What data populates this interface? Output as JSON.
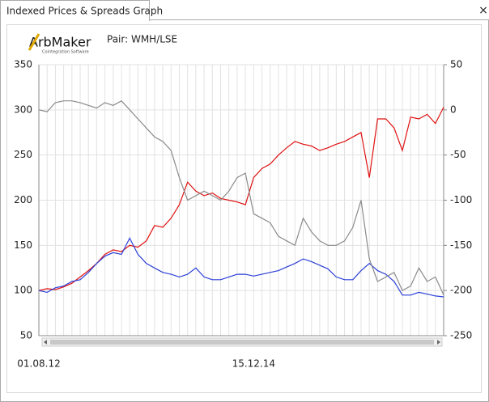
{
  "window": {
    "tab": "Indexed Prices & Spreads Graph",
    "logo": "ArbMaker",
    "tagline": "Cointegration Software",
    "pair": "Pair: WMH/LSE"
  },
  "chart_data": {
    "type": "line",
    "categories": [
      "01.08.12",
      null,
      null,
      null,
      null,
      null,
      null,
      null,
      null,
      null,
      null,
      null,
      null,
      null,
      null,
      null,
      null,
      null,
      null,
      null,
      null,
      null,
      null,
      null,
      null,
      null,
      "15.12.14",
      null,
      null,
      null,
      null,
      null,
      null,
      null,
      null,
      null,
      null,
      null,
      null,
      null,
      null,
      null,
      null,
      null,
      null,
      null,
      null,
      null,
      null,
      null
    ],
    "series": [
      {
        "color": "#e01010",
        "values": [
          100,
          102,
          101,
          104,
          108,
          115,
          122,
          130,
          140,
          145,
          143,
          150,
          148,
          155,
          172,
          170,
          180,
          195,
          220,
          210,
          205,
          208,
          202,
          200,
          198,
          195,
          225,
          235,
          240,
          250,
          258,
          265,
          262,
          260,
          255,
          258,
          262,
          265,
          270,
          275,
          225,
          290,
          290,
          280,
          255,
          292,
          290,
          295,
          285,
          303
        ]
      },
      {
        "color": "#2a3fd8",
        "values": [
          100,
          98,
          103,
          105,
          110,
          112,
          120,
          130,
          138,
          142,
          140,
          158,
          140,
          130,
          125,
          120,
          118,
          115,
          118,
          125,
          115,
          112,
          112,
          115,
          118,
          118,
          116,
          118,
          120,
          122,
          126,
          130,
          135,
          132,
          128,
          124,
          115,
          112,
          112,
          122,
          130,
          122,
          118,
          110,
          95,
          95,
          98,
          96,
          94,
          93
        ]
      },
      {
        "color": "#8a8a8a",
        "axis": "y2",
        "values": [
          0,
          -2,
          8,
          10,
          10,
          8,
          5,
          2,
          8,
          5,
          10,
          0,
          -10,
          -20,
          -30,
          -35,
          -45,
          -75,
          -100,
          -95,
          -90,
          -95,
          -100,
          -90,
          -75,
          -70,
          -115,
          -120,
          -125,
          -140,
          -145,
          -150,
          -120,
          -135,
          -145,
          -150,
          -150,
          -145,
          -130,
          -100,
          -165,
          -190,
          -185,
          -180,
          -200,
          -195,
          -175,
          -190,
          -185,
          -205
        ]
      }
    ],
    "ylim": [
      50,
      350
    ],
    "yticks": [
      50,
      100,
      150,
      200,
      250,
      300,
      350
    ],
    "y2lim": [
      -250,
      50
    ],
    "y2ticks": [
      -250,
      -200,
      -150,
      -100,
      -50,
      0,
      50
    ],
    "grid": true
  }
}
